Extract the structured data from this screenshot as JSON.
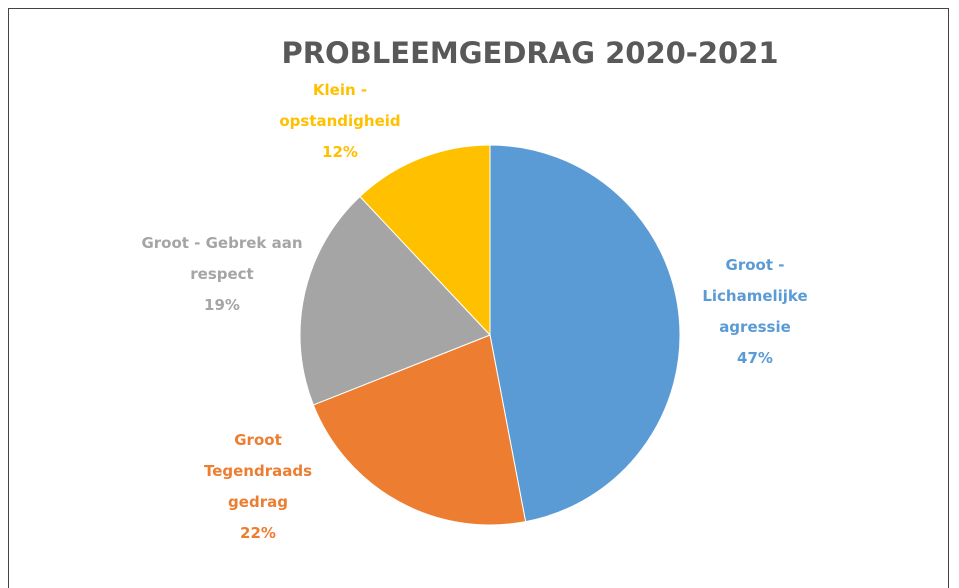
{
  "chart_data": {
    "type": "pie",
    "title": "PROBLEEMGEDRAG  2020-2021",
    "categories": [
      "Groot - Lichamelijke agressie",
      "Groot Tegendraads gedrag",
      "Groot - Gebrek aan respect",
      "Klein - opstandigheid"
    ],
    "values": [
      47,
      22,
      19,
      12
    ],
    "value_labels": [
      "47%",
      "22%",
      "19%",
      "12%"
    ],
    "colors": [
      "#5b9bd5",
      "#ed7d31",
      "#a5a5a5",
      "#ffc000"
    ]
  }
}
